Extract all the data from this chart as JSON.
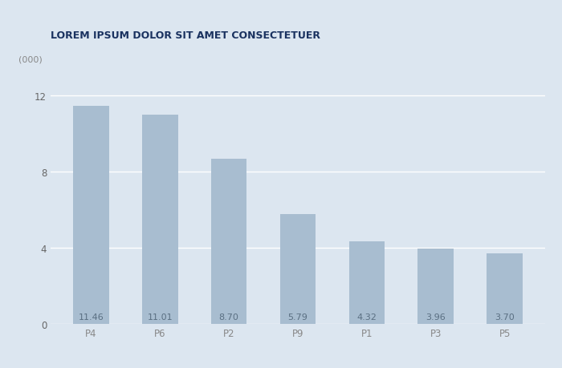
{
  "categories": [
    "P4",
    "P6",
    "P2",
    "P9",
    "P1",
    "P3",
    "P5"
  ],
  "values": [
    11.46,
    11.01,
    8.7,
    5.79,
    4.32,
    3.96,
    3.7
  ],
  "bar_color": "#a8bdd0",
  "background_color": "#dce6f0",
  "title": "LOREM IPSUM DOLOR SIT AMET CONSECTETUER",
  "title_color": "#1a3260",
  "ylabel_text": "(000)",
  "yticks": [
    0,
    4,
    8,
    12
  ],
  "ylim": [
    0,
    13.2
  ],
  "title_fontsize": 9,
  "label_fontsize": 8,
  "tick_fontsize": 8.5,
  "bar_label_color": "#5a6f82",
  "grid_color": "#ffffff",
  "bar_width": 0.52
}
